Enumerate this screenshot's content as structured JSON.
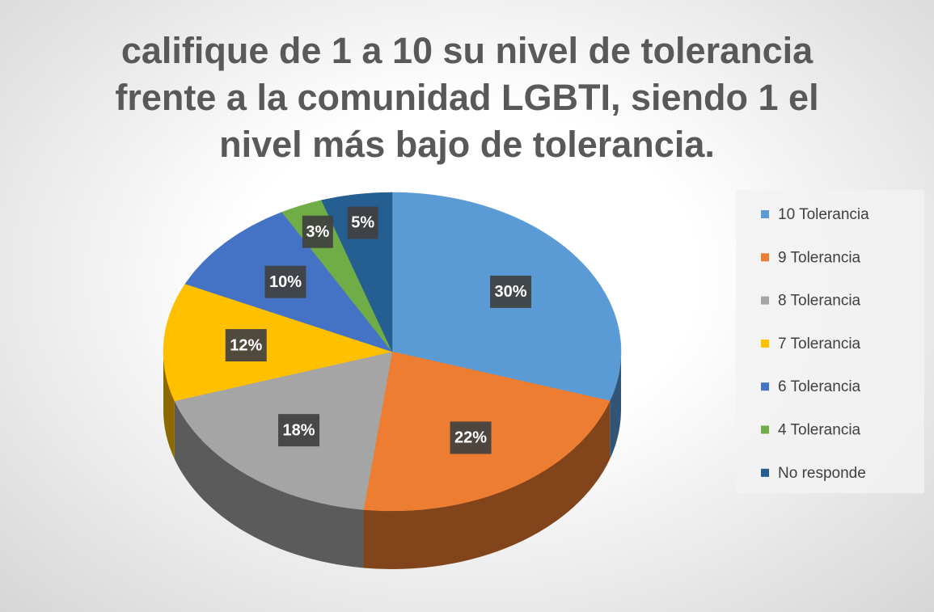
{
  "chart_data": {
    "type": "pie",
    "title": "califique de 1 a 10 su nivel de tolerancia frente a la comunidad LGBTI,  siendo 1 el nivel más bajo de tolerancia.",
    "categories": [
      "10 Tolerancia",
      "9 Tolerancia",
      "8 Tolerancia",
      "7 Tolerancia",
      "6 Tolerancia",
      "4 Tolerancia",
      "No responde"
    ],
    "values": [
      30,
      22,
      18,
      12,
      10,
      3,
      5
    ],
    "value_labels": [
      "30%",
      "22%",
      "18%",
      "12%",
      "10%",
      "3%",
      "5%"
    ],
    "colors": [
      "#5b9bd5",
      "#ed7d31",
      "#a5a5a5",
      "#ffc000",
      "#4472c4",
      "#70ad47",
      "#255e91"
    ],
    "legend": "right"
  }
}
